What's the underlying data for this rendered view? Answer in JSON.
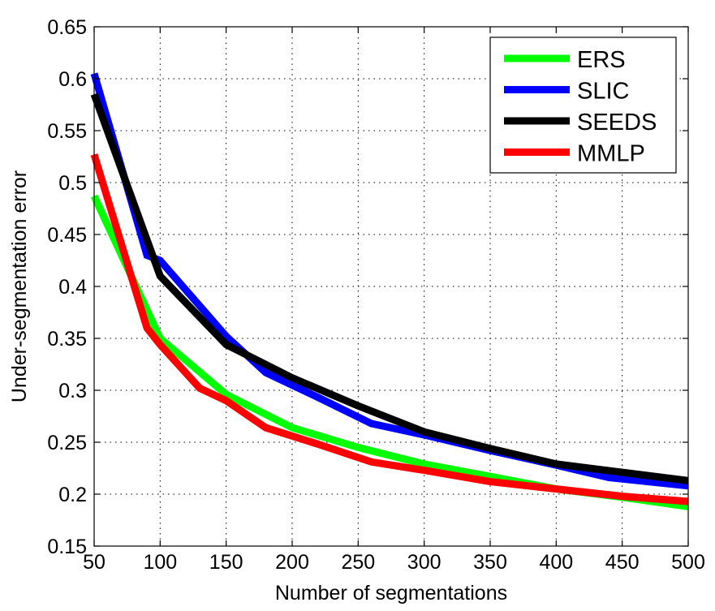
{
  "chart_data": {
    "type": "line",
    "title": "",
    "xlabel": "Number of segmentations",
    "ylabel": "Under-segmentation error",
    "xlim": [
      50,
      500
    ],
    "ylim": [
      0.15,
      0.65
    ],
    "xticks": [
      50,
      100,
      150,
      200,
      250,
      300,
      350,
      400,
      450,
      500
    ],
    "yticks": [
      0.15,
      0.2,
      0.25,
      0.3,
      0.35,
      0.4,
      0.45,
      0.5,
      0.55,
      0.6,
      0.65
    ],
    "xtick_labels": [
      "50",
      "100",
      "150",
      "200",
      "250",
      "300",
      "350",
      "400",
      "450",
      "500"
    ],
    "ytick_labels": [
      "0.15",
      "0.2",
      "0.25",
      "0.3",
      "0.35",
      "0.4",
      "0.45",
      "0.5",
      "0.55",
      "0.6",
      "0.65"
    ],
    "grid": true,
    "legend_position": "top-right",
    "series": [
      {
        "name": "ERS",
        "color": "#00ff00",
        "x": [
          50,
          100,
          150,
          200,
          250,
          300,
          350,
          400,
          450,
          500
        ],
        "y": [
          0.487,
          0.35,
          0.296,
          0.264,
          0.245,
          0.229,
          0.217,
          0.205,
          0.197,
          0.188
        ]
      },
      {
        "name": "SLIC",
        "color": "#0000ff",
        "x": [
          50,
          90,
          100,
          150,
          180,
          220,
          260,
          300,
          350,
          400,
          440,
          500
        ],
        "y": [
          0.605,
          0.43,
          0.425,
          0.352,
          0.317,
          0.293,
          0.268,
          0.257,
          0.242,
          0.228,
          0.216,
          0.208
        ]
      },
      {
        "name": "SEEDS",
        "color": "#000000",
        "x": [
          50,
          100,
          150,
          200,
          250,
          300,
          350,
          400,
          450,
          500
        ],
        "y": [
          0.585,
          0.41,
          0.344,
          0.312,
          0.285,
          0.26,
          0.244,
          0.229,
          0.221,
          0.213
        ]
      },
      {
        "name": "MMLP",
        "color": "#ff0000",
        "x": [
          50,
          90,
          100,
          130,
          150,
          180,
          220,
          260,
          300,
          350,
          400,
          450,
          500
        ],
        "y": [
          0.527,
          0.36,
          0.344,
          0.302,
          0.29,
          0.264,
          0.248,
          0.231,
          0.223,
          0.212,
          0.205,
          0.198,
          0.193
        ]
      }
    ]
  }
}
